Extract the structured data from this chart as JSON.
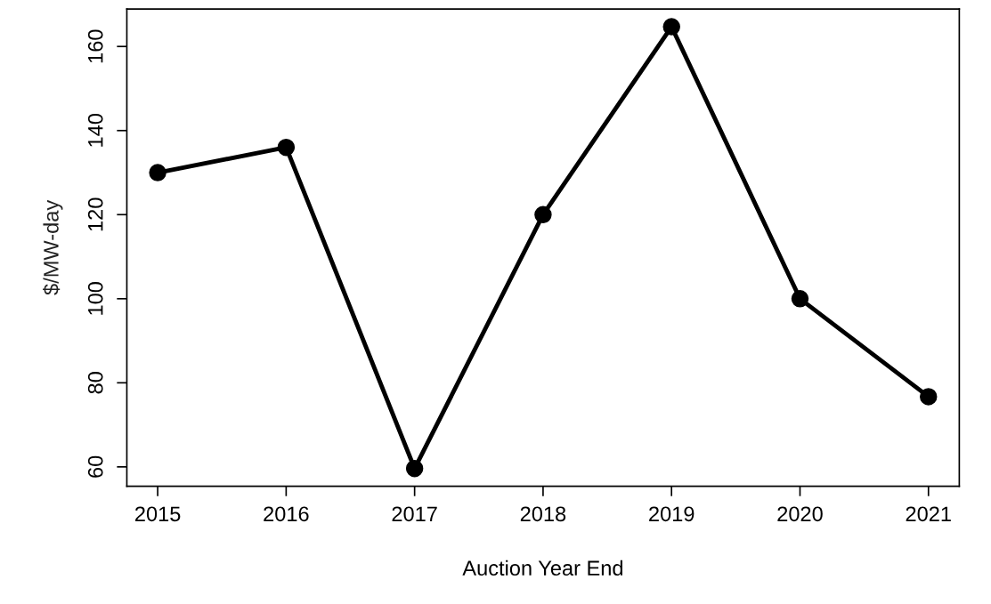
{
  "chart_data": {
    "type": "line",
    "xlabel": "Auction Year End",
    "ylabel": "$/MW-day",
    "x": [
      2015,
      2016,
      2017,
      2018,
      2019,
      2020,
      2021
    ],
    "series": [
      {
        "color": "#000000",
        "values": [
          130,
          136,
          59.6,
          120,
          164.7,
          100,
          76.7
        ]
      }
    ],
    "xlim": [
      2014.76,
      2021.24
    ],
    "xticks": [
      2015,
      2016,
      2017,
      2018,
      2019,
      2020,
      2021
    ],
    "ylim": [
      55.4,
      168.9
    ],
    "yticks": [
      60,
      80,
      100,
      120,
      140,
      160
    ],
    "grid": false,
    "legend": false,
    "marker": "circle",
    "line_style": "solid"
  }
}
